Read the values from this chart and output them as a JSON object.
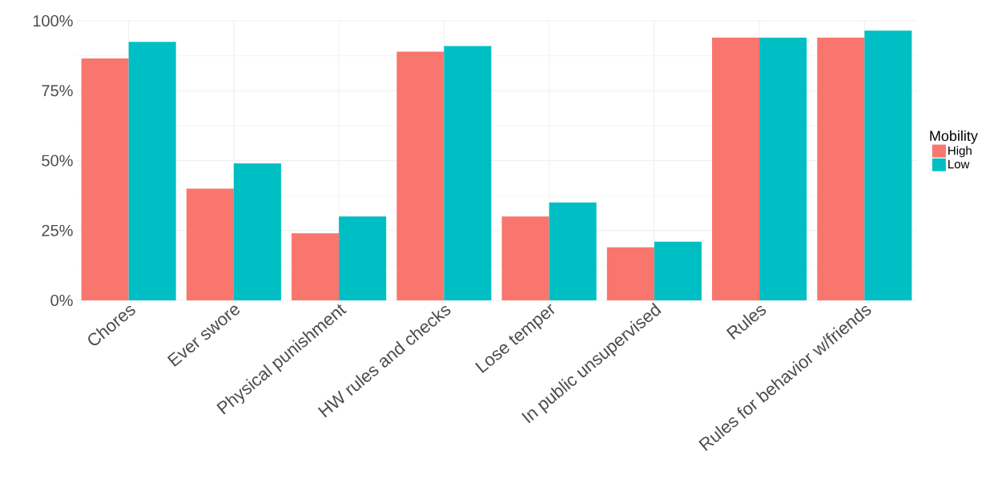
{
  "chart_data": {
    "type": "bar",
    "legend_title": "Mobility",
    "categories": [
      "Chores",
      "Ever swore",
      "Physical punishment",
      "HW rules and checks",
      "Lose temper",
      "In public unsupervised",
      "Rules",
      "Rules for behavior w/friends"
    ],
    "series": [
      {
        "name": "High",
        "color": "#f8766d",
        "values": [
          86.5,
          40,
          24,
          89,
          30,
          19,
          94,
          94
        ]
      },
      {
        "name": "Low",
        "color": "#00bfc4",
        "values": [
          92.5,
          49,
          30,
          91,
          35,
          21,
          94,
          96.5
        ]
      }
    ],
    "ylim": [
      0,
      100
    ],
    "yticks": [
      {
        "value": 0,
        "label": "0%"
      },
      {
        "value": 25,
        "label": "25%"
      },
      {
        "value": 50,
        "label": "50%"
      },
      {
        "value": 75,
        "label": "75%"
      },
      {
        "value": 100,
        "label": "100%"
      }
    ],
    "grid": true,
    "legend": "right"
  }
}
